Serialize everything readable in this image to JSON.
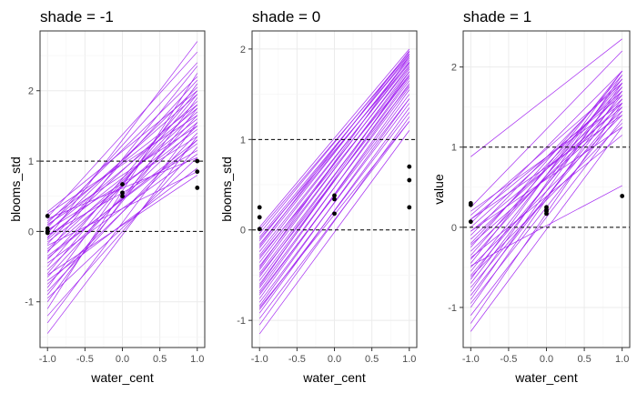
{
  "colors": {
    "line": "#a020f0",
    "point": "#000000",
    "reference": "#000000"
  },
  "chart_data": [
    {
      "type": "line",
      "title": "shade = -1",
      "xlabel": "water_cent",
      "ylabel": "blooms_std",
      "xlim": [
        -1.1,
        1.1
      ],
      "ylim": [
        -1.65,
        2.85
      ],
      "xticks": [
        -1.0,
        -0.5,
        0.0,
        0.5,
        1.0
      ],
      "xtick_labels": [
        "-1.0",
        "-0.5",
        "0.0",
        "0.5",
        "1.0"
      ],
      "yticks": [
        -1,
        0,
        1,
        2
      ],
      "ytick_labels": [
        "-1",
        "0",
        "1",
        "2"
      ],
      "reference_lines": [
        0,
        1
      ],
      "grid": true,
      "lines": [
        [
          -1.45,
          1.35
        ],
        [
          -1.3,
          1.55
        ],
        [
          -1.2,
          1.2
        ],
        [
          -1.1,
          2.25
        ],
        [
          -1.0,
          1.9
        ],
        [
          -0.95,
          1.05
        ],
        [
          -0.9,
          1.75
        ],
        [
          -0.85,
          1.4
        ],
        [
          -0.8,
          2.1
        ],
        [
          -0.75,
          1.3
        ],
        [
          -0.7,
          0.9
        ],
        [
          -0.65,
          1.65
        ],
        [
          -0.6,
          1.95
        ],
        [
          -0.55,
          1.5
        ],
        [
          -0.5,
          2.0
        ],
        [
          -0.45,
          1.1
        ],
        [
          -0.4,
          1.8
        ],
        [
          -0.35,
          1.25
        ],
        [
          -0.3,
          2.35
        ],
        [
          -0.28,
          1.55
        ],
        [
          -0.25,
          1.7
        ],
        [
          -0.2,
          0.85
        ],
        [
          -0.18,
          2.15
        ],
        [
          -0.15,
          1.45
        ],
        [
          -0.12,
          1.85
        ],
        [
          -0.1,
          2.7
        ],
        [
          -0.08,
          1.6
        ],
        [
          -0.05,
          1.15
        ],
        [
          -0.02,
          2.05
        ],
        [
          0.0,
          1.75
        ],
        [
          0.02,
          1.35
        ],
        [
          0.05,
          2.4
        ],
        [
          0.08,
          1.95
        ],
        [
          0.1,
          1.5
        ],
        [
          0.12,
          2.2
        ],
        [
          0.15,
          1.8
        ],
        [
          0.18,
          1.05
        ],
        [
          0.2,
          2.55
        ],
        [
          0.25,
          1.65
        ],
        [
          0.28,
          2.0
        ],
        [
          -0.62,
          0.8
        ],
        [
          -0.38,
          1.3
        ]
      ],
      "points": [
        [
          -1.0,
          0.22
        ],
        [
          -1.0,
          0.04
        ],
        [
          -1.0,
          0.0
        ],
        [
          -1.0,
          -0.02
        ],
        [
          0.0,
          0.67
        ],
        [
          0.0,
          0.55
        ],
        [
          0.0,
          0.5
        ],
        [
          1.0,
          1.0
        ],
        [
          1.0,
          0.85
        ],
        [
          1.0,
          0.62
        ]
      ]
    },
    {
      "type": "line",
      "title": "shade = 0",
      "xlabel": "water_cent",
      "ylabel": "blooms_std",
      "xlim": [
        -1.1,
        1.1
      ],
      "ylim": [
        -1.3,
        2.2
      ],
      "xticks": [
        -1.0,
        -0.5,
        0.0,
        0.5,
        1.0
      ],
      "xtick_labels": [
        "-1.0",
        "-0.5",
        "0.0",
        "0.5",
        "1.0"
      ],
      "yticks": [
        -1,
        0,
        1,
        2
      ],
      "ytick_labels": [
        "-1",
        "0",
        "1",
        "2"
      ],
      "reference_lines": [
        0,
        1
      ],
      "grid": true,
      "lines": [
        [
          -1.15,
          1.1
        ],
        [
          -1.05,
          1.25
        ],
        [
          -0.98,
          1.2
        ],
        [
          -0.92,
          1.35
        ],
        [
          -0.88,
          1.3
        ],
        [
          -0.84,
          1.45
        ],
        [
          -0.8,
          1.4
        ],
        [
          -0.76,
          1.55
        ],
        [
          -0.72,
          1.5
        ],
        [
          -0.68,
          1.62
        ],
        [
          -0.64,
          1.58
        ],
        [
          -0.6,
          1.68
        ],
        [
          -0.56,
          1.65
        ],
        [
          -0.52,
          1.72
        ],
        [
          -0.48,
          1.7
        ],
        [
          -0.44,
          1.78
        ],
        [
          -0.4,
          1.75
        ],
        [
          -0.36,
          1.82
        ],
        [
          -0.32,
          1.8
        ],
        [
          -0.28,
          1.86
        ],
        [
          -0.24,
          1.84
        ],
        [
          -0.2,
          1.9
        ],
        [
          -0.16,
          1.88
        ],
        [
          -0.12,
          1.94
        ],
        [
          -0.08,
          1.92
        ],
        [
          -0.04,
          1.97
        ],
        [
          0.0,
          1.95
        ],
        [
          0.03,
          2.0
        ],
        [
          -0.7,
          1.45
        ],
        [
          -0.5,
          1.6
        ],
        [
          -0.3,
          1.7
        ],
        [
          -0.1,
          1.85
        ],
        [
          -0.86,
          1.2
        ],
        [
          -0.62,
          1.75
        ],
        [
          -0.42,
          1.92
        ],
        [
          -0.18,
          1.98
        ]
      ],
      "points": [
        [
          -1.0,
          0.25
        ],
        [
          -1.0,
          0.14
        ],
        [
          -1.0,
          0.01
        ],
        [
          0.0,
          0.38
        ],
        [
          0.0,
          0.34
        ],
        [
          0.0,
          0.18
        ],
        [
          1.0,
          0.7
        ],
        [
          1.0,
          0.55
        ],
        [
          1.0,
          0.25
        ]
      ]
    },
    {
      "type": "line",
      "title": "shade = 1",
      "xlabel": "water_cent",
      "ylabel": "value",
      "xlim": [
        -1.1,
        1.1
      ],
      "ylim": [
        -1.5,
        2.45
      ],
      "xticks": [
        -1.0,
        -0.5,
        0.0,
        0.5,
        1.0
      ],
      "xtick_labels": [
        "-1.0",
        "-0.5",
        "0.0",
        "0.5",
        "1.0"
      ],
      "yticks": [
        -1,
        0,
        1,
        2
      ],
      "ytick_labels": [
        "-1",
        "0",
        "1",
        "2"
      ],
      "reference_lines": [
        0,
        1
      ],
      "grid": true,
      "lines": [
        [
          0.88,
          2.35
        ],
        [
          0.25,
          2.2
        ],
        [
          -1.3,
          1.25
        ],
        [
          -1.2,
          1.55
        ],
        [
          -1.1,
          1.35
        ],
        [
          -1.0,
          1.7
        ],
        [
          -0.95,
          1.45
        ],
        [
          -0.9,
          1.8
        ],
        [
          -0.85,
          1.6
        ],
        [
          -0.8,
          1.9
        ],
        [
          -0.75,
          1.5
        ],
        [
          -0.7,
          1.75
        ],
        [
          -0.65,
          1.95
        ],
        [
          -0.6,
          1.65
        ],
        [
          -0.55,
          1.85
        ],
        [
          -0.5,
          1.4
        ],
        [
          -0.45,
          1.95
        ],
        [
          -0.4,
          1.7
        ],
        [
          -0.35,
          1.8
        ],
        [
          -0.3,
          1.55
        ],
        [
          -0.25,
          1.9
        ],
        [
          -0.2,
          1.75
        ],
        [
          -0.15,
          1.6
        ],
        [
          -0.1,
          1.85
        ],
        [
          -0.05,
          1.5
        ],
        [
          0.0,
          1.7
        ],
        [
          0.05,
          1.95
        ],
        [
          0.1,
          1.65
        ],
        [
          0.15,
          1.8
        ],
        [
          0.2,
          1.55
        ],
        [
          -0.48,
          0.52
        ],
        [
          -0.62,
          1.3
        ],
        [
          -0.38,
          1.15
        ],
        [
          -0.22,
          1.45
        ],
        [
          -0.05,
          1.25
        ],
        [
          0.1,
          1.4
        ]
      ],
      "points": [
        [
          -1.0,
          0.3
        ],
        [
          -1.0,
          0.28
        ],
        [
          -1.0,
          0.07
        ],
        [
          0.0,
          0.25
        ],
        [
          0.0,
          0.22
        ],
        [
          0.0,
          0.2
        ],
        [
          0.0,
          0.17
        ],
        [
          1.0,
          0.39
        ]
      ]
    }
  ]
}
